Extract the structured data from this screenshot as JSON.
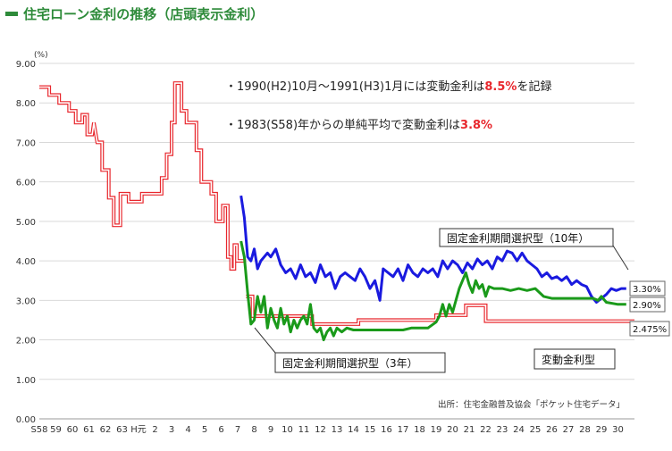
{
  "header": {
    "title": "住宅ローン金利の推移（店頭表示金利）"
  },
  "notes": [
    {
      "prefix": "・1990(H2)10月～1991(H3)1月には変動金利は",
      "highlight": "8.5%",
      "suffix": "を記録"
    },
    {
      "prefix": "・1983(S58)年からの単純平均で変動金利は",
      "highlight": "3.8%",
      "suffix": ""
    }
  ],
  "source": "出所：住宅金融普及協会「ポケット住宅データ」",
  "colors": {
    "variable": "#e8272d",
    "fixed10": "#1a1adf",
    "fixed3": "#1a9a1a",
    "accent": "#2e8b3a"
  },
  "chart_data": {
    "type": "line",
    "unit_label": "(%)",
    "ylim": [
      0,
      9
    ],
    "y_ticks": [
      "0.00",
      "1.00",
      "2.00",
      "3.00",
      "4.00",
      "5.00",
      "6.00",
      "7.00",
      "8.00",
      "9.00"
    ],
    "x_range": [
      0,
      36
    ],
    "x_ticks": [
      {
        "x": 0,
        "label": "S58"
      },
      {
        "x": 1,
        "label": "59"
      },
      {
        "x": 2,
        "label": "60"
      },
      {
        "x": 3,
        "label": "61"
      },
      {
        "x": 4,
        "label": "62"
      },
      {
        "x": 5,
        "label": "63"
      },
      {
        "x": 6,
        "label": "H元"
      },
      {
        "x": 7,
        "label": "2"
      },
      {
        "x": 8,
        "label": "3"
      },
      {
        "x": 9,
        "label": "4"
      },
      {
        "x": 10,
        "label": "5"
      },
      {
        "x": 11,
        "label": "6"
      },
      {
        "x": 12,
        "label": "7"
      },
      {
        "x": 13,
        "label": "8"
      },
      {
        "x": 14,
        "label": "9"
      },
      {
        "x": 15,
        "label": "10"
      },
      {
        "x": 16,
        "label": "11"
      },
      {
        "x": 17,
        "label": "12"
      },
      {
        "x": 18,
        "label": "13"
      },
      {
        "x": 19,
        "label": "14"
      },
      {
        "x": 20,
        "label": "15"
      },
      {
        "x": 21,
        "label": "16"
      },
      {
        "x": 22,
        "label": "17"
      },
      {
        "x": 23,
        "label": "18"
      },
      {
        "x": 24,
        "label": "19"
      },
      {
        "x": 25,
        "label": "20"
      },
      {
        "x": 26,
        "label": "21"
      },
      {
        "x": 27,
        "label": "22"
      },
      {
        "x": 28,
        "label": "23"
      },
      {
        "x": 29,
        "label": "24"
      },
      {
        "x": 30,
        "label": "25"
      },
      {
        "x": 31,
        "label": "26"
      },
      {
        "x": 32,
        "label": "27"
      },
      {
        "x": 33,
        "label": "28"
      },
      {
        "x": 34,
        "label": "29"
      },
      {
        "x": 35,
        "label": "30"
      }
    ],
    "series": [
      {
        "name": "変動金利型",
        "color": "#e8272d",
        "end_label": "2.475%",
        "points": [
          [
            0,
            8.4
          ],
          [
            0.6,
            8.4
          ],
          [
            0.6,
            8.2
          ],
          [
            1.2,
            8.2
          ],
          [
            1.2,
            8.0
          ],
          [
            1.8,
            8.0
          ],
          [
            1.8,
            7.8
          ],
          [
            2.2,
            7.8
          ],
          [
            2.2,
            7.5
          ],
          [
            2.6,
            7.5
          ],
          [
            2.6,
            7.7
          ],
          [
            2.9,
            7.7
          ],
          [
            2.9,
            7.2
          ],
          [
            3.2,
            7.2
          ],
          [
            3.3,
            7.5
          ],
          [
            3.5,
            7.0
          ],
          [
            3.8,
            7.0
          ],
          [
            3.8,
            6.3
          ],
          [
            4.2,
            6.3
          ],
          [
            4.2,
            5.6
          ],
          [
            4.5,
            5.6
          ],
          [
            4.5,
            4.9
          ],
          [
            4.9,
            4.9
          ],
          [
            4.9,
            5.7
          ],
          [
            5.4,
            5.7
          ],
          [
            5.4,
            5.5
          ],
          [
            6.2,
            5.5
          ],
          [
            6.2,
            5.7
          ],
          [
            7.4,
            5.7
          ],
          [
            7.4,
            6.1
          ],
          [
            7.7,
            6.1
          ],
          [
            7.7,
            6.7
          ],
          [
            8.0,
            6.7
          ],
          [
            8.0,
            7.5
          ],
          [
            8.2,
            7.5
          ],
          [
            8.2,
            8.5
          ],
          [
            8.6,
            8.5
          ],
          [
            8.6,
            7.8
          ],
          [
            8.9,
            7.8
          ],
          [
            8.9,
            7.5
          ],
          [
            9.5,
            7.5
          ],
          [
            9.5,
            6.8
          ],
          [
            9.8,
            6.8
          ],
          [
            9.8,
            6.0
          ],
          [
            10.4,
            6.0
          ],
          [
            10.4,
            5.7
          ],
          [
            10.7,
            5.7
          ],
          [
            10.7,
            5.0
          ],
          [
            11.1,
            5.0
          ],
          [
            11.1,
            5.4
          ],
          [
            11.4,
            5.4
          ],
          [
            11.4,
            4.1
          ],
          [
            11.6,
            4.1
          ],
          [
            11.6,
            3.8
          ],
          [
            11.8,
            3.8
          ],
          [
            11.8,
            4.4
          ],
          [
            11.95,
            4.4
          ],
          [
            11.95,
            4.0
          ],
          [
            12.5,
            4.0
          ]
        ],
        "points_b": [
          [
            12.5,
            3.1
          ],
          [
            12.9,
            3.1
          ],
          [
            12.9,
            2.6
          ],
          [
            16.5,
            2.6
          ],
          [
            16.5,
            2.4
          ],
          [
            19.3,
            2.4
          ],
          [
            19.3,
            2.5
          ],
          [
            24.0,
            2.5
          ],
          [
            24.0,
            2.625
          ],
          [
            25.8,
            2.625
          ],
          [
            25.8,
            2.875
          ],
          [
            27.0,
            2.875
          ],
          [
            27.0,
            2.475
          ],
          [
            36,
            2.475
          ]
        ]
      },
      {
        "name": "固定金利期間選択型（10年）",
        "color": "#1a1adf",
        "end_label": "3.30%",
        "points": [
          [
            12.2,
            5.65
          ],
          [
            12.4,
            5.1
          ],
          [
            12.6,
            4.1
          ],
          [
            12.8,
            4.0
          ],
          [
            13.0,
            4.3
          ],
          [
            13.2,
            3.8
          ],
          [
            13.4,
            4.0
          ],
          [
            13.6,
            4.1
          ],
          [
            13.8,
            4.2
          ],
          [
            14.0,
            4.1
          ],
          [
            14.3,
            4.3
          ],
          [
            14.6,
            3.9
          ],
          [
            14.9,
            3.7
          ],
          [
            15.2,
            3.8
          ],
          [
            15.5,
            3.55
          ],
          [
            15.8,
            3.9
          ],
          [
            16.1,
            3.6
          ],
          [
            16.4,
            3.7
          ],
          [
            16.7,
            3.45
          ],
          [
            17.0,
            3.9
          ],
          [
            17.3,
            3.6
          ],
          [
            17.6,
            3.7
          ],
          [
            17.9,
            3.3
          ],
          [
            18.2,
            3.6
          ],
          [
            18.5,
            3.7
          ],
          [
            18.8,
            3.6
          ],
          [
            19.1,
            3.5
          ],
          [
            19.4,
            3.8
          ],
          [
            19.7,
            3.6
          ],
          [
            20.0,
            3.3
          ],
          [
            20.3,
            3.5
          ],
          [
            20.6,
            3.0
          ],
          [
            20.8,
            3.8
          ],
          [
            21.1,
            3.7
          ],
          [
            21.4,
            3.6
          ],
          [
            21.7,
            3.8
          ],
          [
            22.0,
            3.5
          ],
          [
            22.3,
            3.9
          ],
          [
            22.6,
            3.7
          ],
          [
            22.9,
            3.6
          ],
          [
            23.2,
            3.8
          ],
          [
            23.5,
            3.7
          ],
          [
            23.8,
            3.8
          ],
          [
            24.1,
            3.6
          ],
          [
            24.4,
            4.0
          ],
          [
            24.7,
            3.8
          ],
          [
            25.0,
            4.0
          ],
          [
            25.3,
            3.9
          ],
          [
            25.6,
            3.7
          ],
          [
            25.9,
            3.95
          ],
          [
            26.2,
            3.8
          ],
          [
            26.5,
            4.05
          ],
          [
            26.8,
            3.9
          ],
          [
            27.1,
            4.0
          ],
          [
            27.4,
            3.8
          ],
          [
            27.7,
            4.1
          ],
          [
            28.0,
            4.0
          ],
          [
            28.3,
            4.25
          ],
          [
            28.6,
            4.2
          ],
          [
            28.9,
            4.0
          ],
          [
            29.2,
            4.2
          ],
          [
            29.5,
            4.0
          ],
          [
            29.8,
            3.9
          ],
          [
            30.1,
            3.8
          ],
          [
            30.4,
            3.6
          ],
          [
            30.7,
            3.7
          ],
          [
            31.0,
            3.55
          ],
          [
            31.3,
            3.6
          ],
          [
            31.6,
            3.5
          ],
          [
            31.9,
            3.6
          ],
          [
            32.2,
            3.4
          ],
          [
            32.5,
            3.5
          ],
          [
            32.8,
            3.4
          ],
          [
            33.1,
            3.35
          ],
          [
            33.4,
            3.1
          ],
          [
            33.7,
            2.95
          ],
          [
            34.0,
            3.05
          ],
          [
            34.3,
            3.15
          ],
          [
            34.6,
            3.3
          ],
          [
            34.9,
            3.25
          ],
          [
            35.2,
            3.3
          ],
          [
            35.5,
            3.3
          ]
        ]
      },
      {
        "name": "固定金利期間選択型（3年）",
        "color": "#1a9a1a",
        "end_label": "2.90%",
        "points": [
          [
            12.2,
            4.5
          ],
          [
            12.4,
            4.1
          ],
          [
            12.6,
            3.2
          ],
          [
            12.8,
            2.4
          ],
          [
            13.0,
            2.5
          ],
          [
            13.2,
            3.1
          ],
          [
            13.4,
            2.7
          ],
          [
            13.6,
            3.1
          ],
          [
            13.8,
            2.3
          ],
          [
            14.0,
            2.8
          ],
          [
            14.2,
            2.5
          ],
          [
            14.4,
            2.3
          ],
          [
            14.6,
            2.8
          ],
          [
            14.8,
            2.4
          ],
          [
            15.0,
            2.6
          ],
          [
            15.2,
            2.2
          ],
          [
            15.4,
            2.5
          ],
          [
            15.6,
            2.3
          ],
          [
            15.8,
            2.5
          ],
          [
            16.0,
            2.6
          ],
          [
            16.2,
            2.4
          ],
          [
            16.4,
            2.9
          ],
          [
            16.6,
            2.3
          ],
          [
            16.8,
            2.2
          ],
          [
            17.0,
            2.3
          ],
          [
            17.2,
            2.0
          ],
          [
            17.4,
            2.2
          ],
          [
            17.6,
            2.3
          ],
          [
            17.8,
            2.1
          ],
          [
            18.0,
            2.3
          ],
          [
            18.3,
            2.2
          ],
          [
            18.6,
            2.3
          ],
          [
            19.0,
            2.25
          ],
          [
            19.5,
            2.25
          ],
          [
            20.0,
            2.25
          ],
          [
            20.5,
            2.25
          ],
          [
            21.0,
            2.25
          ],
          [
            21.5,
            2.25
          ],
          [
            22.0,
            2.25
          ],
          [
            22.5,
            2.3
          ],
          [
            23.0,
            2.3
          ],
          [
            23.5,
            2.3
          ],
          [
            24.0,
            2.45
          ],
          [
            24.2,
            2.6
          ],
          [
            24.4,
            2.9
          ],
          [
            24.6,
            2.6
          ],
          [
            24.8,
            2.9
          ],
          [
            25.0,
            2.7
          ],
          [
            25.2,
            3.0
          ],
          [
            25.4,
            3.3
          ],
          [
            25.6,
            3.5
          ],
          [
            25.8,
            3.7
          ],
          [
            26.0,
            3.4
          ],
          [
            26.2,
            3.2
          ],
          [
            26.4,
            3.5
          ],
          [
            26.6,
            3.3
          ],
          [
            26.8,
            3.4
          ],
          [
            27.0,
            3.1
          ],
          [
            27.2,
            3.35
          ],
          [
            27.5,
            3.3
          ],
          [
            28.0,
            3.3
          ],
          [
            28.5,
            3.25
          ],
          [
            29.0,
            3.3
          ],
          [
            29.5,
            3.25
          ],
          [
            30.0,
            3.3
          ],
          [
            30.5,
            3.1
          ],
          [
            31.0,
            3.05
          ],
          [
            32.0,
            3.05
          ],
          [
            33.0,
            3.05
          ],
          [
            33.5,
            3.05
          ],
          [
            33.8,
            3.0
          ],
          [
            34.0,
            3.1
          ],
          [
            34.3,
            2.95
          ],
          [
            35.0,
            2.9
          ],
          [
            35.5,
            2.9
          ]
        ]
      }
    ],
    "labels": {
      "fixed10": "固定金利期間選択型（10年）",
      "fixed3": "固定金利期間選択型（3年）",
      "variable": "変動金利型"
    }
  }
}
